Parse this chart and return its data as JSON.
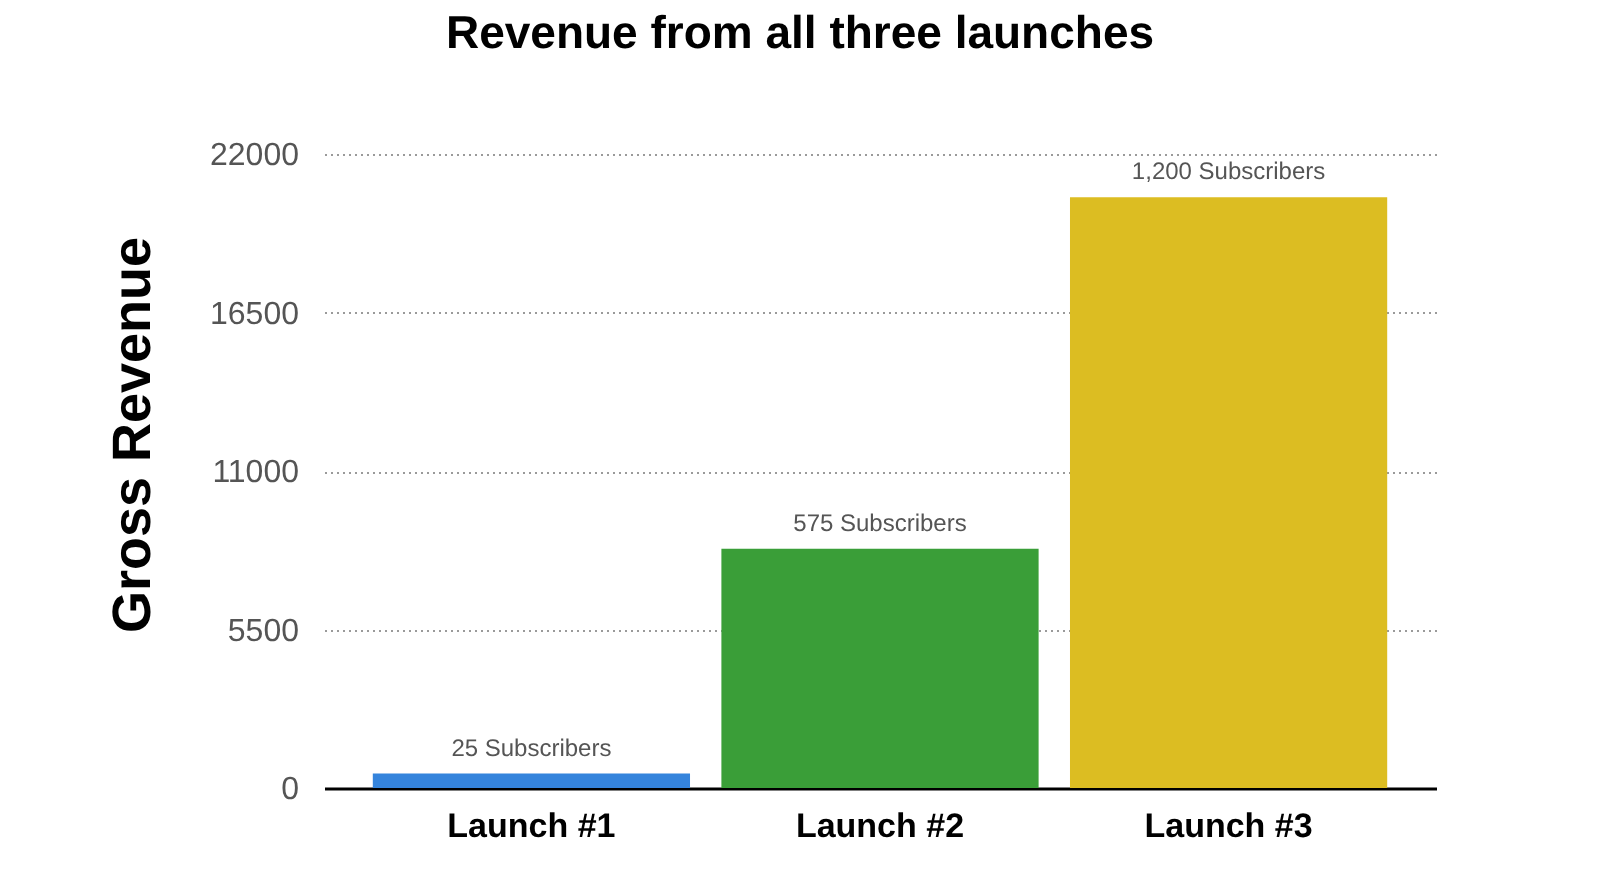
{
  "chart_data": {
    "type": "bar",
    "title": "Revenue from all three launches",
    "ylabel": "Gross Revenue",
    "categories": [
      "Launch #1",
      "Launch #2",
      "Launch #3"
    ],
    "values": [
      500,
      8300,
      20500
    ],
    "colors": [
      "#3584dc",
      "#3a9e38",
      "#dcbd22"
    ],
    "annotations": [
      {
        "text": "25 Subscribers",
        "x": "Launch #1",
        "y": 500
      },
      {
        "text": "575 Subscribers",
        "x": "Launch #2",
        "y": 8300
      },
      {
        "text": "1,200 Subscribers",
        "x": "Launch #3",
        "y": 20500
      }
    ],
    "ylim": [
      0,
      22000
    ],
    "yticks": [
      0,
      5500,
      11000,
      16500,
      22000
    ],
    "grid": "y"
  }
}
